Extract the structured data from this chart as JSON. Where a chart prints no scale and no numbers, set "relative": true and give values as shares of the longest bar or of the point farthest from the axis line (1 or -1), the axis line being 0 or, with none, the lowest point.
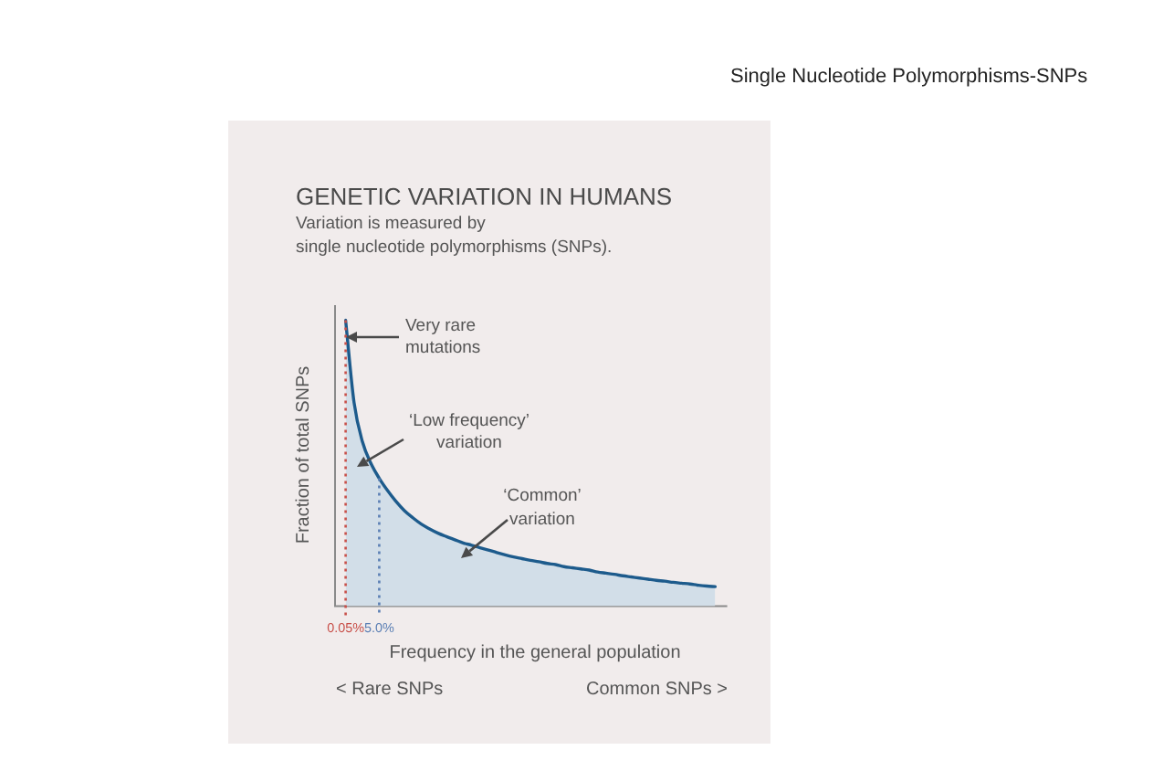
{
  "chart_data": {
    "type": "area",
    "title": "GENETIC VARIATION IN HUMANS",
    "subtitle": "Variation is measured by\nsingle nucleotide polymorphisms (SNPs).",
    "xlabel": "Frequency in the general population",
    "ylabel": "Fraction of total SNPs",
    "relative": true,
    "categories": [
      "0.05%",
      null,
      null,
      null,
      "5.0%",
      null,
      null,
      null,
      null,
      null,
      null,
      null,
      null,
      null,
      null,
      null,
      null,
      null,
      null,
      null,
      null,
      null,
      null,
      null,
      null,
      null,
      null,
      null,
      null,
      null,
      null,
      null,
      null,
      null,
      null,
      null,
      null,
      null,
      null,
      null,
      null,
      null,
      null,
      null,
      null
    ],
    "series": [
      {
        "color": "#1d5b8c",
        "values": [
          1,
          0.713,
          0.575,
          0.5,
          0.447,
          0.404,
          0.366,
          0.334,
          0.309,
          0.287,
          0.27,
          0.255,
          0.243,
          0.232,
          0.221,
          0.213,
          0.204,
          0.196,
          0.187,
          0.179,
          0.172,
          0.166,
          0.16,
          0.155,
          0.149,
          0.145,
          0.138,
          0.134,
          0.13,
          0.126,
          0.119,
          0.115,
          0.111,
          0.106,
          0.102,
          0.098,
          0.094,
          0.09,
          0.087,
          0.083,
          0.08,
          0.077,
          0.073,
          0.07,
          0.068
        ]
      }
    ],
    "ref_lines": [
      {
        "axis": "x",
        "value": "0.05%",
        "color": "#c8504a",
        "line_style": "dotted"
      },
      {
        "axis": "x",
        "value": "5.0%",
        "color": "#5b7fb4",
        "line_style": "dotted"
      }
    ],
    "annotations": [
      "Single Nucleotide Polymorphisms-SNPs",
      "Very rare mutations",
      "‘Low frequency’ variation",
      "‘Common’ variation",
      "< Rare SNPs",
      "Common SNPs >"
    ]
  }
}
